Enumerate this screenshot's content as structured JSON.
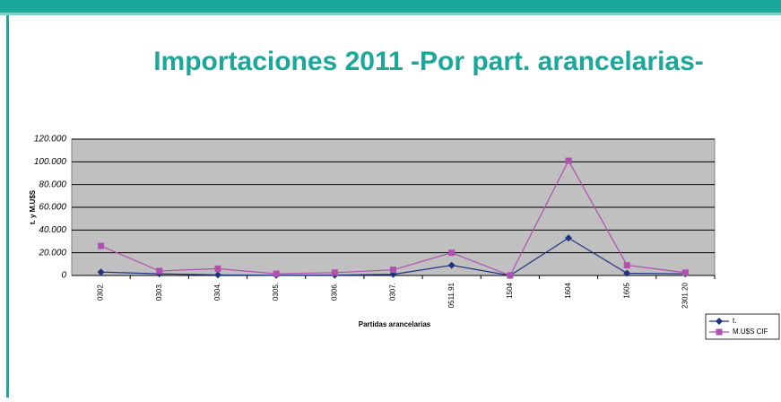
{
  "chart_data": {
    "type": "line",
    "title": "Importaciones 2011 -Por part. arancelarias-",
    "y_label": "t. y M.U$S",
    "x_label": "Partidas arancelarias",
    "categories": [
      "0302.",
      "0303.",
      "0304.",
      "0305.",
      "0306.",
      "0307.",
      "0511.91",
      "1504",
      "1604",
      "1605",
      "2301.20"
    ],
    "series": [
      {
        "name": "t.",
        "color": "#1f3580",
        "marker": "diamond",
        "values": [
          3000,
          1500,
          500,
          200,
          300,
          1000,
          9000,
          0,
          33000,
          2000,
          1500
        ]
      },
      {
        "name": "M.U$S CIF",
        "color": "#b050b0",
        "marker": "square",
        "values": [
          26000,
          4000,
          6000,
          1500,
          2500,
          5000,
          20000,
          0,
          101000,
          9000,
          2500
        ]
      }
    ],
    "ylim": [
      0,
      120000
    ],
    "yticks": [
      0,
      {
        "value": 20000,
        "label": "20.000"
      },
      {
        "value": 40000,
        "label": "40.000"
      },
      {
        "value": 60000,
        "label": "60.000"
      },
      {
        "value": 80000,
        "label": "80.000"
      },
      {
        "value": 100000,
        "label": "100.000"
      },
      {
        "value": 120000,
        "label": "120.000"
      }
    ],
    "grid": true,
    "legend": "right"
  }
}
